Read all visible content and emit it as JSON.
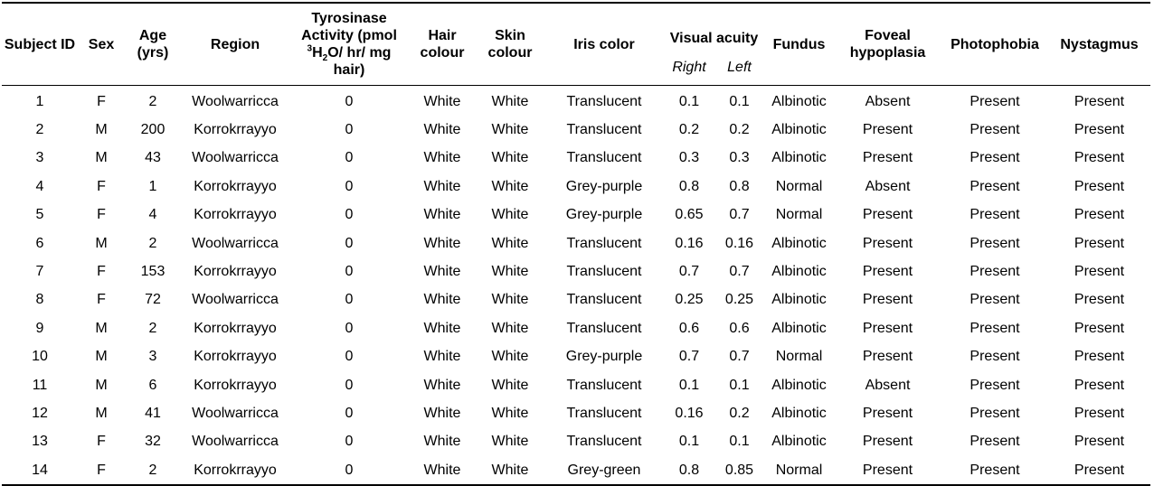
{
  "table": {
    "headers": {
      "subject_id": "Subject ID",
      "sex": "Sex",
      "age": "Age (yrs)",
      "region": "Region",
      "tyrosinase_line1": "Tyrosinase Activity (pmol",
      "tyrosinase_sup": "3",
      "tyrosinase_h": "H",
      "tyrosinase_sub": "2",
      "tyrosinase_line2": "O/ hr/ mg hair)",
      "hair": "Hair colour",
      "skin": "Skin colour",
      "iris": "Iris color",
      "visual_acuity": "Visual acuity",
      "right": "Right",
      "left": "Left",
      "fundus": "Fundus",
      "foveal": "Foveal hypoplasia",
      "photophobia": "Photophobia",
      "nystagmus": "Nystagmus"
    },
    "rows": [
      [
        "1",
        "F",
        "2",
        "Woolwarricca",
        "0",
        "White",
        "White",
        "Translucent",
        "0.1",
        "0.1",
        "Albinotic",
        "Absent",
        "Present",
        "Present"
      ],
      [
        "2",
        "M",
        "200",
        "Korrokrrayyo",
        "0",
        "White",
        "White",
        "Translucent",
        "0.2",
        "0.2",
        "Albinotic",
        "Present",
        "Present",
        "Present"
      ],
      [
        "3",
        "M",
        "43",
        "Woolwarricca",
        "0",
        "White",
        "White",
        "Translucent",
        "0.3",
        "0.3",
        "Albinotic",
        "Present",
        "Present",
        "Present"
      ],
      [
        "4",
        "F",
        "1",
        "Korrokrrayyo",
        "0",
        "White",
        "White",
        "Grey-purple",
        "0.8",
        "0.8",
        "Normal",
        "Absent",
        "Present",
        "Present"
      ],
      [
        "5",
        "F",
        "4",
        "Korrokrrayyo",
        "0",
        "White",
        "White",
        "Grey-purple",
        "0.65",
        "0.7",
        "Normal",
        "Present",
        "Present",
        "Present"
      ],
      [
        "6",
        "M",
        "2",
        "Woolwarricca",
        "0",
        "White",
        "White",
        "Translucent",
        "0.16",
        "0.16",
        "Albinotic",
        "Present",
        "Present",
        "Present"
      ],
      [
        "7",
        "F",
        "153",
        "Korrokrrayyo",
        "0",
        "White",
        "White",
        "Translucent",
        "0.7",
        "0.7",
        "Albinotic",
        "Present",
        "Present",
        "Present"
      ],
      [
        "8",
        "F",
        "72",
        "Woolwarricca",
        "0",
        "White",
        "White",
        "Translucent",
        "0.25",
        "0.25",
        "Albinotic",
        "Present",
        "Present",
        "Present"
      ],
      [
        "9",
        "M",
        "2",
        "Korrokrrayyo",
        "0",
        "White",
        "White",
        "Translucent",
        "0.6",
        "0.6",
        "Albinotic",
        "Present",
        "Present",
        "Present"
      ],
      [
        "10",
        "M",
        "3",
        "Korrokrrayyo",
        "0",
        "White",
        "White",
        "Grey-purple",
        "0.7",
        "0.7",
        "Normal",
        "Present",
        "Present",
        "Present"
      ],
      [
        "11",
        "M",
        "6",
        "Korrokrrayyo",
        "0",
        "White",
        "White",
        "Translucent",
        "0.1",
        "0.1",
        "Albinotic",
        "Absent",
        "Present",
        "Present"
      ],
      [
        "12",
        "M",
        "41",
        "Woolwarricca",
        "0",
        "White",
        "White",
        "Translucent",
        "0.16",
        "0.2",
        "Albinotic",
        "Present",
        "Present",
        "Present"
      ],
      [
        "13",
        "F",
        "32",
        "Woolwarricca",
        "0",
        "White",
        "White",
        "Translucent",
        "0.1",
        "0.1",
        "Albinotic",
        "Present",
        "Present",
        "Present"
      ],
      [
        "14",
        "F",
        "2",
        "Korrokrrayyo",
        "0",
        "White",
        "White",
        "Grey-green",
        "0.8",
        "0.85",
        "Normal",
        "Present",
        "Present",
        "Present"
      ]
    ]
  }
}
